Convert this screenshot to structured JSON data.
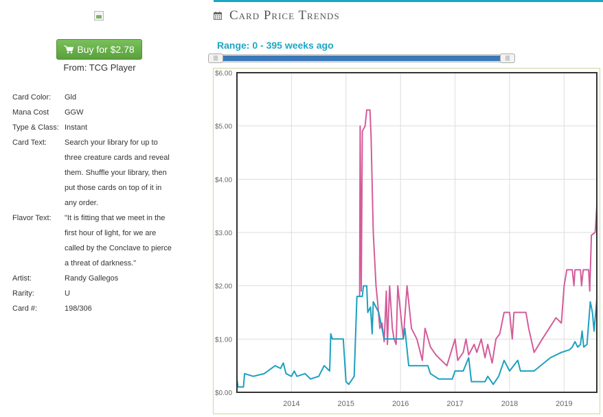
{
  "sidebar": {
    "buy_label": "Buy for $2.78",
    "source_label": "From: TCG Player",
    "details": [
      {
        "key": "Card Color:",
        "lines": [
          "Gld"
        ]
      },
      {
        "key": "Mana Cost",
        "lines": [
          "GGW"
        ]
      },
      {
        "key": "Type & Class:",
        "lines": [
          "Instant"
        ]
      },
      {
        "key": "Card Text:",
        "lines": [
          "Search your library for up to",
          "three creature cards and reveal",
          "them. Shuffle your library, then",
          "put those cards on top of it in",
          "any order."
        ]
      },
      {
        "key": "Flavor Text:",
        "lines": [
          "\"It is fitting that we meet in the",
          "first hour of light, for we are",
          "called by the Conclave to pierce",
          "a threat of darkness.\""
        ]
      },
      {
        "key": "Artist:",
        "lines": [
          "Randy Gallegos"
        ]
      },
      {
        "key": "Rarity:",
        "lines": [
          "U"
        ]
      },
      {
        "key": "Card #:",
        "lines": [
          "198/306"
        ]
      }
    ]
  },
  "header": {
    "title": "Card Price Trends",
    "range_label": "Range: 0 - 395 weeks ago",
    "accent_color": "#1aa7c4"
  },
  "chart_data": {
    "type": "line",
    "ylim": [
      0,
      6
    ],
    "y_ticks": [
      "$0.00",
      "$1.00",
      "$2.00",
      "$3.00",
      "$4.00",
      "$5.00",
      "$6.00"
    ],
    "x_ticks": [
      "2014",
      "2015",
      "2016",
      "2017",
      "2018",
      "2019"
    ],
    "xlim": [
      2013.0,
      2019.6
    ],
    "grid": true,
    "series": [
      {
        "color": "#d45b9a",
        "points": [
          [
            2015.25,
            1.8
          ],
          [
            2015.26,
            5.0
          ],
          [
            2015.28,
            1.9
          ],
          [
            2015.3,
            4.9
          ],
          [
            2015.35,
            5.0
          ],
          [
            2015.38,
            5.3
          ],
          [
            2015.44,
            5.3
          ],
          [
            2015.46,
            4.8
          ],
          [
            2015.5,
            3.0
          ],
          [
            2015.55,
            2.0
          ],
          [
            2015.58,
            1.7
          ],
          [
            2015.62,
            1.2
          ],
          [
            2015.66,
            1.3
          ],
          [
            2015.7,
            0.95
          ],
          [
            2015.74,
            1.9
          ],
          [
            2015.76,
            0.9
          ],
          [
            2015.8,
            2.0
          ],
          [
            2015.85,
            1.2
          ],
          [
            2015.88,
            1.0
          ],
          [
            2015.92,
            0.9
          ],
          [
            2015.95,
            2.0
          ],
          [
            2016.0,
            1.5
          ],
          [
            2016.05,
            1.0
          ],
          [
            2016.12,
            2.0
          ],
          [
            2016.15,
            1.7
          ],
          [
            2016.2,
            1.2
          ],
          [
            2016.3,
            1.0
          ],
          [
            2016.4,
            0.6
          ],
          [
            2016.45,
            1.2
          ],
          [
            2016.55,
            0.85
          ],
          [
            2016.65,
            0.7
          ],
          [
            2016.75,
            0.6
          ],
          [
            2016.85,
            0.5
          ],
          [
            2017.0,
            1.0
          ],
          [
            2017.05,
            0.6
          ],
          [
            2017.15,
            0.75
          ],
          [
            2017.2,
            1.0
          ],
          [
            2017.25,
            0.7
          ],
          [
            2017.35,
            0.9
          ],
          [
            2017.4,
            0.75
          ],
          [
            2017.48,
            1.0
          ],
          [
            2017.55,
            0.65
          ],
          [
            2017.6,
            0.9
          ],
          [
            2017.68,
            0.55
          ],
          [
            2017.75,
            1.0
          ],
          [
            2017.82,
            1.1
          ],
          [
            2017.9,
            1.5
          ],
          [
            2018.0,
            1.5
          ],
          [
            2018.05,
            1.0
          ],
          [
            2018.08,
            1.5
          ],
          [
            2018.3,
            1.5
          ],
          [
            2018.35,
            1.2
          ],
          [
            2018.45,
            0.75
          ],
          [
            2018.6,
            1.0
          ],
          [
            2018.85,
            1.4
          ],
          [
            2018.95,
            1.3
          ],
          [
            2019.0,
            2.0
          ],
          [
            2019.05,
            2.3
          ],
          [
            2019.15,
            2.3
          ],
          [
            2019.18,
            2.0
          ],
          [
            2019.2,
            2.3
          ],
          [
            2019.3,
            2.3
          ],
          [
            2019.32,
            2.0
          ],
          [
            2019.35,
            2.3
          ],
          [
            2019.45,
            2.3
          ],
          [
            2019.47,
            1.9
          ],
          [
            2019.5,
            2.95
          ],
          [
            2019.57,
            3.0
          ],
          [
            2019.6,
            3.5
          ]
        ]
      },
      {
        "color": "#1c9fc0",
        "points": [
          [
            2013.0,
            0.25
          ],
          [
            2013.02,
            0.1
          ],
          [
            2013.12,
            0.1
          ],
          [
            2013.14,
            0.35
          ],
          [
            2013.3,
            0.3
          ],
          [
            2013.5,
            0.35
          ],
          [
            2013.7,
            0.5
          ],
          [
            2013.8,
            0.45
          ],
          [
            2013.85,
            0.55
          ],
          [
            2013.9,
            0.35
          ],
          [
            2014.0,
            0.3
          ],
          [
            2014.05,
            0.4
          ],
          [
            2014.1,
            0.3
          ],
          [
            2014.25,
            0.35
          ],
          [
            2014.35,
            0.25
          ],
          [
            2014.5,
            0.3
          ],
          [
            2014.6,
            0.5
          ],
          [
            2014.7,
            0.4
          ],
          [
            2014.72,
            1.1
          ],
          [
            2014.75,
            1.0
          ],
          [
            2014.95,
            1.0
          ],
          [
            2015.0,
            0.2
          ],
          [
            2015.05,
            0.15
          ],
          [
            2015.15,
            0.3
          ],
          [
            2015.2,
            1.8
          ],
          [
            2015.3,
            1.8
          ],
          [
            2015.32,
            2.0
          ],
          [
            2015.38,
            2.0
          ],
          [
            2015.4,
            1.5
          ],
          [
            2015.45,
            1.6
          ],
          [
            2015.48,
            1.1
          ],
          [
            2015.5,
            1.7
          ],
          [
            2015.6,
            1.5
          ],
          [
            2015.7,
            1.0
          ],
          [
            2015.9,
            1.0
          ],
          [
            2016.05,
            1.0
          ],
          [
            2016.08,
            1.2
          ],
          [
            2016.15,
            0.5
          ],
          [
            2016.3,
            0.5
          ],
          [
            2016.5,
            0.5
          ],
          [
            2016.55,
            0.35
          ],
          [
            2016.7,
            0.25
          ],
          [
            2016.95,
            0.25
          ],
          [
            2017.0,
            0.4
          ],
          [
            2017.15,
            0.4
          ],
          [
            2017.25,
            0.65
          ],
          [
            2017.3,
            0.2
          ],
          [
            2017.55,
            0.2
          ],
          [
            2017.6,
            0.3
          ],
          [
            2017.7,
            0.15
          ],
          [
            2017.8,
            0.3
          ],
          [
            2017.9,
            0.6
          ],
          [
            2018.0,
            0.4
          ],
          [
            2018.15,
            0.6
          ],
          [
            2018.2,
            0.4
          ],
          [
            2018.45,
            0.4
          ],
          [
            2018.75,
            0.65
          ],
          [
            2018.95,
            0.75
          ],
          [
            2019.1,
            0.8
          ],
          [
            2019.15,
            0.85
          ],
          [
            2019.2,
            0.95
          ],
          [
            2019.25,
            0.85
          ],
          [
            2019.3,
            0.9
          ],
          [
            2019.33,
            1.15
          ],
          [
            2019.36,
            0.85
          ],
          [
            2019.42,
            0.9
          ],
          [
            2019.48,
            1.7
          ],
          [
            2019.52,
            1.5
          ],
          [
            2019.55,
            1.15
          ],
          [
            2019.6,
            1.75
          ]
        ]
      }
    ]
  }
}
